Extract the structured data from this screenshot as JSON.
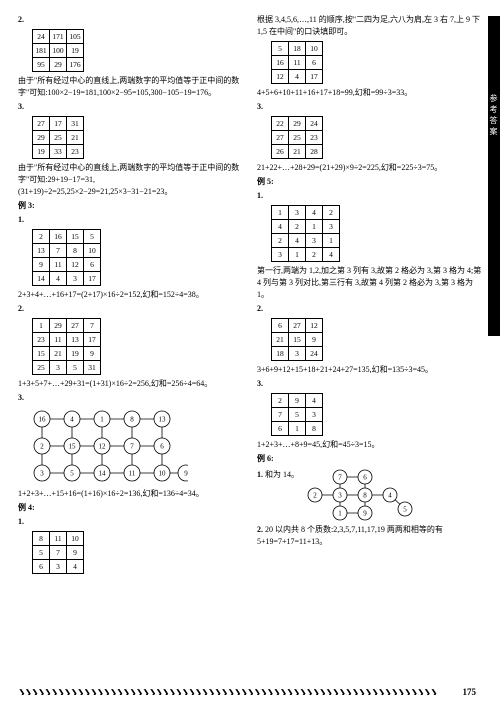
{
  "sidebar": {
    "label": "参考答案"
  },
  "page_number": "175",
  "left": {
    "p2": {
      "num": "2.",
      "grid": [
        [
          "24",
          "171",
          "105"
        ],
        [
          "181",
          "100",
          "19"
        ],
        [
          "95",
          "29",
          "176"
        ]
      ],
      "text": "由于\"所有经过中心的直线上,两端数字的平均值等于正中间的数字\"可知:100×2−19=181,100×2−95=105,300−105−19=176。"
    },
    "p3": {
      "num": "3.",
      "grid": [
        [
          "27",
          "17",
          "31"
        ],
        [
          "29",
          "25",
          "21"
        ],
        [
          "19",
          "33",
          "23"
        ]
      ],
      "text": "由于\"所有经过中心的直线上,两端数字的平均值等于正中间的数字\"可知:29+19−17=31,(31+19)÷2=25,25×2−29=21,25×3−31−21=23。"
    },
    "ex3": {
      "title": "例 3:",
      "p1": {
        "num": "1.",
        "grid": [
          [
            "2",
            "16",
            "15",
            "5"
          ],
          [
            "13",
            "7",
            "8",
            "10"
          ],
          [
            "9",
            "11",
            "12",
            "6"
          ],
          [
            "14",
            "4",
            "3",
            "17"
          ]
        ],
        "text": "2+3+4+…+16+17=(2+17)×16÷2=152,幻和=152÷4=38。"
      },
      "p2": {
        "num": "2.",
        "grid": [
          [
            "1",
            "29",
            "27",
            "7"
          ],
          [
            "23",
            "11",
            "13",
            "17"
          ],
          [
            "15",
            "21",
            "19",
            "9"
          ],
          [
            "25",
            "3",
            "5",
            "31"
          ]
        ],
        "text": "1+3+5+7+…+29+31=(1+31)×16÷2=256,幻和=256÷4=64。"
      },
      "p3": {
        "num": "3.",
        "text": "1+2+3+…+15+16=(1+16)×16÷2=136,幻和=136÷4=34。"
      }
    },
    "ex4": {
      "title": "例 4:",
      "p1": {
        "num": "1.",
        "grid": [
          [
            "8",
            "11",
            "10"
          ],
          [
            "5",
            "7",
            "9"
          ],
          [
            "6",
            "3",
            "4"
          ]
        ]
      }
    },
    "graph1": {
      "nodes": [
        [
          16,
          0,
          0
        ],
        [
          4,
          1,
          0
        ],
        [
          1,
          2,
          0
        ],
        [
          8,
          3,
          0
        ],
        [
          13,
          4,
          0
        ],
        [
          2,
          0,
          1
        ],
        [
          15,
          1,
          1
        ],
        [
          12,
          2,
          1
        ],
        [
          7,
          3,
          1
        ],
        [
          6,
          4,
          1
        ],
        [
          3,
          0,
          2
        ],
        [
          5,
          1,
          2
        ],
        [
          14,
          2,
          2
        ],
        [
          11,
          3,
          2
        ],
        [
          10,
          4,
          2
        ],
        [
          9,
          5,
          2
        ]
      ]
    }
  },
  "right": {
    "intro": "根据 3,4,5,6,…,11 的顺序,按\"二四为足,六八为肩,左 3 右 7,上 9 下 1,5 在中间\"的口诀填即可。",
    "g1": {
      "grid": [
        [
          "5",
          "18",
          "10"
        ],
        [
          "16",
          "11",
          "6"
        ],
        [
          "12",
          "4",
          "17"
        ]
      ],
      "text": "4+5+6+10+11+16+17+18=99,幻和=99÷3=33。"
    },
    "p3": {
      "num": "3.",
      "grid": [
        [
          "22",
          "29",
          "24"
        ],
        [
          "27",
          "25",
          "23"
        ],
        [
          "26",
          "21",
          "28"
        ]
      ],
      "text": "21+22+…+28+29=(21+29)×9÷2=225,幻和=225÷3=75。"
    },
    "ex5": {
      "title": "例 5:",
      "p1": {
        "num": "1.",
        "grid": [
          [
            "1",
            "3",
            "4",
            "2"
          ],
          [
            "4",
            "2",
            "1",
            "3"
          ],
          [
            "2",
            "4",
            "3",
            "1"
          ],
          [
            "3",
            "1",
            "2",
            "4"
          ]
        ],
        "text": "第一行,两端为 1,2,加之第 3 列有 3,故第 2 格必为 3,第 3 格为 4;第 4 列与第 3 列对比,第三行有 3,故第 4 列第 2 格必为 3,第 3 格为 1。"
      },
      "p2": {
        "num": "2.",
        "grid": [
          [
            "6",
            "27",
            "12"
          ],
          [
            "21",
            "15",
            "9"
          ],
          [
            "18",
            "3",
            "24"
          ]
        ],
        "text": "3+6+9+12+15+18+21+24+27=135,幻和=135÷3=45。"
      },
      "p3": {
        "num": "3.",
        "grid": [
          [
            "2",
            "9",
            "4"
          ],
          [
            "7",
            "5",
            "3"
          ],
          [
            "6",
            "1",
            "8"
          ]
        ],
        "text": "1+2+3+…+8+9=45,幻和=45÷3=15。"
      }
    },
    "ex6": {
      "title": "例 6:",
      "p1": {
        "num": "1.",
        "text": "和为 14。"
      },
      "p2": {
        "num": "2.",
        "text": "20 以内共 8 个质数:2,3,5,7,11,17,19 两两和相等的有 5+19=7+17=11+13。"
      }
    },
    "graph2": {
      "nodes": [
        7,
        6,
        2,
        3,
        8,
        4,
        5,
        1,
        9
      ]
    }
  }
}
